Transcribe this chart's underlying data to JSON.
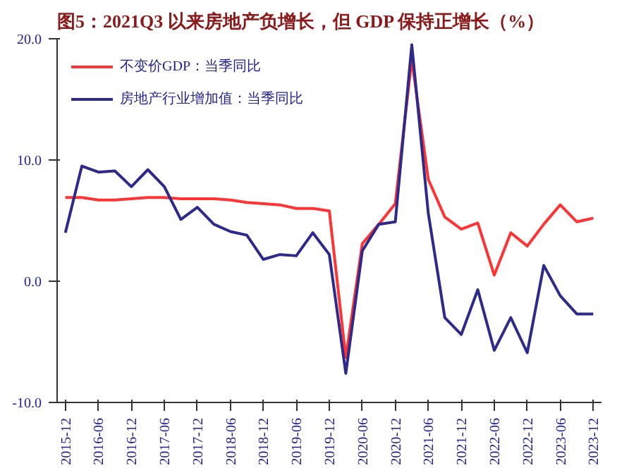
{
  "chart_data": {
    "type": "line",
    "title": "图5：2021Q3 以来房地产负增长，但 GDP 保持正增长（%）",
    "categories": [
      "2015-12",
      null,
      "2016-06",
      null,
      "2016-12",
      null,
      "2017-06",
      null,
      "2017-12",
      null,
      "2018-06",
      null,
      "2018-12",
      null,
      "2019-06",
      null,
      "2019-12",
      null,
      "2020-06",
      null,
      "2020-12",
      null,
      "2021-06",
      null,
      "2021-12",
      null,
      "2022-06",
      null,
      "2022-12",
      null,
      "2023-06",
      null,
      "2023-12"
    ],
    "series": [
      {
        "name": "不变价GDP：当季同比",
        "color": "#ff3333",
        "values": [
          6.9,
          6.9,
          6.7,
          6.7,
          6.8,
          6.9,
          6.9,
          6.8,
          6.8,
          6.8,
          6.7,
          6.5,
          6.4,
          6.3,
          6.0,
          6.0,
          5.8,
          -6.3,
          3.1,
          4.7,
          6.4,
          18.3,
          8.4,
          5.3,
          4.3,
          4.8,
          0.5,
          4.0,
          2.9,
          4.7,
          6.3,
          4.9,
          5.2
        ]
      },
      {
        "name": "房地产行业增加值：当季同比",
        "color": "#2e2a8c",
        "values": [
          4.0,
          9.5,
          9.0,
          9.1,
          7.8,
          9.2,
          7.8,
          5.1,
          6.1,
          4.7,
          4.1,
          3.8,
          1.8,
          2.2,
          2.1,
          4.0,
          2.2,
          -7.6,
          2.5,
          4.7,
          4.9,
          19.5,
          5.6,
          -3.0,
          -4.4,
          -0.7,
          -5.7,
          -3.0,
          -5.9,
          1.3,
          -1.2,
          -2.7,
          -2.7
        ]
      }
    ],
    "ylim": [
      -10,
      20
    ],
    "yticks": [
      {
        "value": -10,
        "label": "-10.0"
      },
      {
        "value": 0,
        "label": "0.0"
      },
      {
        "value": 10,
        "label": "10.0"
      },
      {
        "value": 20,
        "label": "20.0"
      }
    ],
    "grid": false,
    "legend": "top left",
    "line_style": "solid",
    "marker": "none"
  }
}
